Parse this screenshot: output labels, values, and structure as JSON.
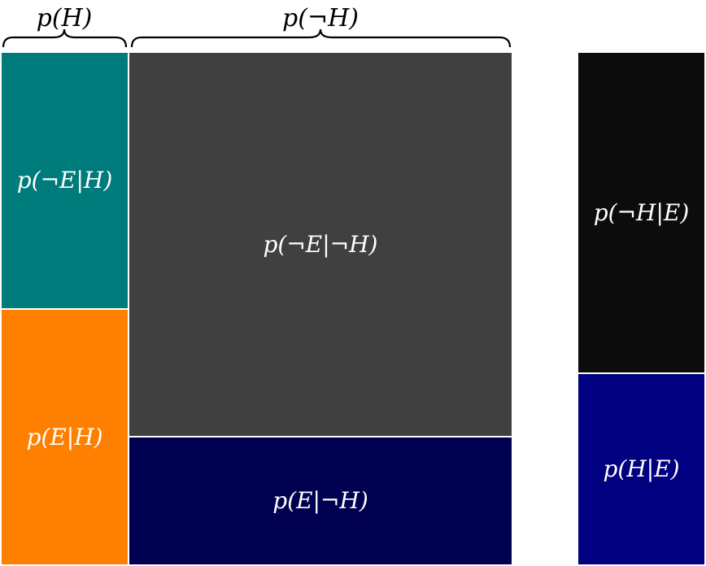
{
  "braces": {
    "h_label": "p(H)",
    "not_h_label": "p(¬H)"
  },
  "cells": {
    "not_e_given_h": {
      "label": "p(¬E|H)",
      "color": "#007B7B"
    },
    "e_given_h": {
      "label": "p(E|H)",
      "color": "#FF8000"
    },
    "not_e_given_not_h": {
      "label": "p(¬E|¬H)",
      "color": "#404040"
    },
    "e_given_not_h": {
      "label": "p(E|¬H)",
      "color": "#000050"
    },
    "not_h_given_e": {
      "label": "p(¬H|E)",
      "color": "#0C0C0C"
    },
    "h_given_e": {
      "label": "p(H|E)",
      "color": "#000080"
    }
  }
}
